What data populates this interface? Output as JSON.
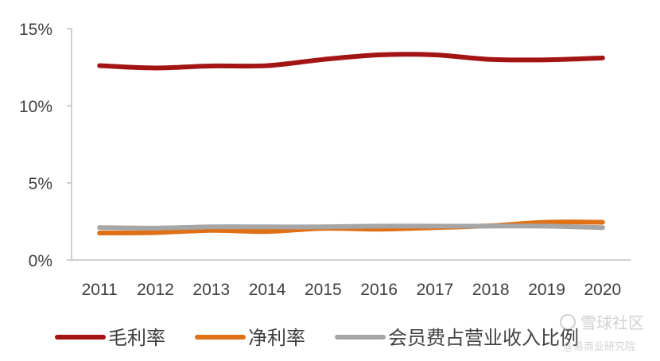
{
  "chart_data": {
    "type": "line",
    "title": "",
    "xlabel": "",
    "ylabel": "",
    "categories": [
      "2011",
      "2012",
      "2013",
      "2014",
      "2015",
      "2016",
      "2017",
      "2018",
      "2019",
      "2020"
    ],
    "ylim": [
      0,
      15
    ],
    "ytick_values": [
      0,
      5,
      10,
      15
    ],
    "ytick_labels": [
      "0%",
      "5%",
      "10%",
      "15%"
    ],
    "grid": false,
    "legend_position": "bottom",
    "series": [
      {
        "name": "毛利率",
        "color": "#A31515",
        "values": [
          12.6,
          12.45,
          12.58,
          12.6,
          13.0,
          13.3,
          13.3,
          13.0,
          12.98,
          13.1
        ]
      },
      {
        "name": "净利率",
        "color": "#E07016",
        "values": [
          1.75,
          1.78,
          1.92,
          1.85,
          2.05,
          2.0,
          2.1,
          2.22,
          2.45,
          2.45
        ]
      },
      {
        "name": "会员费占营业收入比例",
        "color": "#A6A6A6",
        "values": [
          2.1,
          2.07,
          2.15,
          2.15,
          2.15,
          2.2,
          2.2,
          2.2,
          2.2,
          2.1
        ]
      }
    ]
  },
  "watermark": {
    "line1": "雪球社区",
    "line2": "@易商业研究院"
  }
}
